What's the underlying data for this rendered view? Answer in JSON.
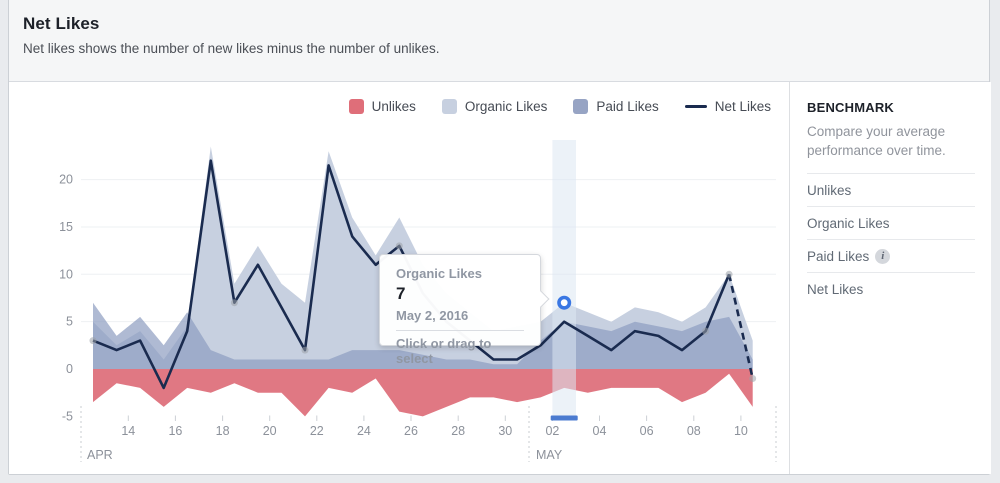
{
  "header": {
    "title": "Net Likes",
    "subtitle": "Net likes shows the number of new likes minus the number of unlikes."
  },
  "legend": {
    "items": [
      {
        "label": "Unlikes",
        "type": "area",
        "color": "#df6e79"
      },
      {
        "label": "Organic Likes",
        "type": "area",
        "color": "#c7d0e0"
      },
      {
        "label": "Paid Likes",
        "type": "area",
        "color": "#97a4c4"
      },
      {
        "label": "Net Likes",
        "type": "line",
        "color": "#1a2b4f"
      }
    ]
  },
  "tooltip": {
    "series": "Organic Likes",
    "value": "7",
    "date": "May 2, 2016",
    "hint": "Click or drag to select"
  },
  "sidebar": {
    "heading": "BENCHMARK",
    "description": "Compare your average performance over time.",
    "items": [
      {
        "label": "Unlikes",
        "info_icon": false
      },
      {
        "label": "Organic Likes",
        "info_icon": false
      },
      {
        "label": "Paid Likes",
        "info_icon": true
      },
      {
        "label": "Net Likes",
        "info_icon": false
      }
    ]
  },
  "chart_data": {
    "type": "area",
    "x_dates": [
      "Apr 12",
      "Apr 13",
      "Apr 14",
      "Apr 15",
      "Apr 16",
      "Apr 17",
      "Apr 18",
      "Apr 19",
      "Apr 20",
      "Apr 21",
      "Apr 22",
      "Apr 23",
      "Apr 24",
      "Apr 25",
      "Apr 26",
      "Apr 27",
      "Apr 28",
      "Apr 29",
      "Apr 30",
      "May 1",
      "May 2",
      "May 3",
      "May 4",
      "May 5",
      "May 6",
      "May 7",
      "May 8",
      "May 9",
      "May 10"
    ],
    "series": [
      {
        "name": "Organic Likes",
        "color": "#c7d0e0",
        "values": [
          5,
          2.5,
          4,
          1,
          4.5,
          23.5,
          9,
          13,
          9,
          7,
          23,
          16,
          12,
          16,
          11,
          8,
          6,
          4,
          4.5,
          5,
          7,
          6,
          5,
          6.5,
          6,
          5,
          6.5,
          10,
          3
        ]
      },
      {
        "name": "Paid Likes",
        "color": "#8d9dc1",
        "values": [
          7,
          3.5,
          5.5,
          2.5,
          6,
          2,
          1,
          1,
          1,
          1,
          1,
          2,
          2,
          2,
          1.5,
          1,
          1,
          0.5,
          0.5,
          3,
          5,
          4.5,
          4,
          5,
          4.5,
          4,
          5,
          5.5,
          1
        ]
      },
      {
        "name": "Unlikes",
        "color": "#dd6d78",
        "values": [
          -3.5,
          -1.5,
          -2,
          -4,
          -2,
          -2.5,
          -1.5,
          -2.5,
          -2.5,
          -5,
          -2,
          -2.5,
          -1,
          -4.5,
          -5,
          -4,
          -3,
          -3,
          -3.5,
          -3,
          -2,
          -2.5,
          -2,
          -2,
          -2,
          -3.5,
          -2.5,
          -0.5,
          -4
        ]
      },
      {
        "name": "Net Likes",
        "color": "#1a2b4f",
        "values": [
          3,
          2,
          3,
          -2,
          4,
          22,
          7,
          11,
          6.5,
          2,
          21.5,
          14,
          11,
          13,
          8,
          5,
          3,
          1,
          1,
          2.5,
          5,
          3.5,
          2,
          4,
          3.5,
          2,
          4,
          10,
          -1
        ]
      }
    ],
    "ylim": [
      -5,
      24
    ],
    "yticks": [
      "20",
      "15",
      "10",
      "5",
      "0",
      "-5"
    ],
    "x_tick_labels": [
      "14",
      "16",
      "18",
      "20",
      "22",
      "24",
      "26",
      "28",
      "30",
      "02",
      "04",
      "06",
      "08",
      "10"
    ],
    "month_labels": [
      "APR",
      "MAY"
    ],
    "selected_index": 20,
    "selected_point": {
      "series": "Organic Likes",
      "value": 7,
      "date": "May 2, 2016"
    },
    "last_point_dashed": true,
    "grid": true,
    "legend_position": "top-right",
    "colors": {
      "gridline": "#eef0f3",
      "selection_band": "#dce7f3",
      "selection_bar": "#4b7bd0",
      "marker_ring": "#3a77e3",
      "axis_text": "#8c919a",
      "dot": "#9aa0a8"
    }
  }
}
